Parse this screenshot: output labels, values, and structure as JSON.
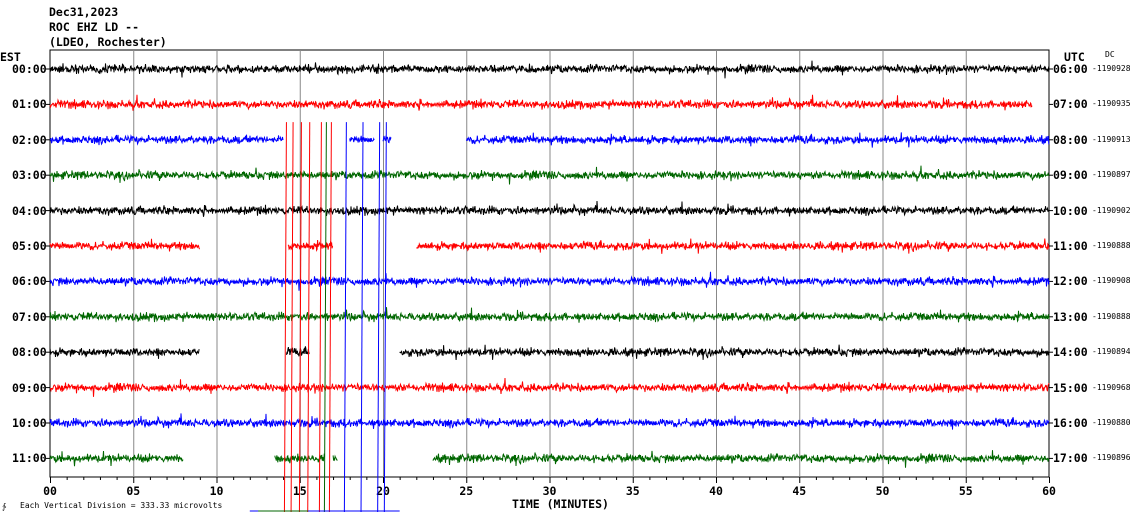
{
  "header": {
    "date": "Dec31,2023",
    "station": "ROC EHZ LD --",
    "network": "(LDEO, Rochester)"
  },
  "left_axis_label": "EST",
  "right_axis_label": "UTC",
  "dc_label": "DC",
  "footer_note": "Each Vertical Division = 333.33 microvolts",
  "chart_data": {
    "type": "line",
    "xlabel": "TIME (MINUTES)",
    "xlim": [
      0,
      60
    ],
    "x_ticks": [
      "00",
      "05",
      "10",
      "15",
      "20",
      "25",
      "30",
      "35",
      "40",
      "45",
      "50",
      "55",
      "60"
    ],
    "colors": {
      "black": "#000000",
      "red": "#ff0000",
      "blue": "#0000ff",
      "green": "#006600"
    },
    "rows": [
      {
        "est": "00:00",
        "utc": "06:00",
        "dc": "-1190928",
        "color": "black",
        "segments": [
          [
            0,
            60
          ]
        ]
      },
      {
        "est": "01:00",
        "utc": "07:00",
        "dc": "-1190935",
        "color": "red",
        "segments": [
          [
            0,
            59
          ]
        ]
      },
      {
        "est": "02:00",
        "utc": "08:00",
        "dc": "-1190913",
        "color": "blue",
        "segments": [
          [
            0,
            14
          ],
          [
            18,
            19.5
          ],
          [
            20,
            20.5
          ],
          [
            25,
            60
          ]
        ]
      },
      {
        "est": "03:00",
        "utc": "09:00",
        "dc": "-1190897",
        "color": "green",
        "segments": [
          [
            0,
            60
          ]
        ]
      },
      {
        "est": "04:00",
        "utc": "10:00",
        "dc": "-1190902",
        "color": "black",
        "segments": [
          [
            0,
            60
          ]
        ]
      },
      {
        "est": "05:00",
        "utc": "11:00",
        "dc": "-1190888",
        "color": "red",
        "segments": [
          [
            0,
            9
          ],
          [
            14.3,
            17
          ],
          [
            22,
            60
          ]
        ]
      },
      {
        "est": "06:00",
        "utc": "12:00",
        "dc": "-1190908",
        "color": "blue",
        "segments": [
          [
            0,
            60
          ]
        ]
      },
      {
        "est": "07:00",
        "utc": "13:00",
        "dc": "-1190888",
        "color": "green",
        "segments": [
          [
            0,
            60
          ]
        ]
      },
      {
        "est": "08:00",
        "utc": "14:00",
        "dc": "-1190894",
        "color": "black",
        "segments": [
          [
            0,
            9
          ],
          [
            14.2,
            15.6
          ],
          [
            21,
            60
          ]
        ]
      },
      {
        "est": "09:00",
        "utc": "15:00",
        "dc": "-1190968",
        "color": "red",
        "segments": [
          [
            0,
            60
          ]
        ]
      },
      {
        "est": "10:00",
        "utc": "16:00",
        "dc": "-1190880",
        "color": "blue",
        "segments": [
          [
            0,
            60
          ]
        ]
      },
      {
        "est": "11:00",
        "utc": "17:00",
        "dc": "-1190896",
        "color": "green",
        "segments": [
          [
            0,
            8
          ],
          [
            13.5,
            16.5
          ],
          [
            17,
            17.3
          ],
          [
            23,
            60
          ]
        ]
      }
    ]
  }
}
